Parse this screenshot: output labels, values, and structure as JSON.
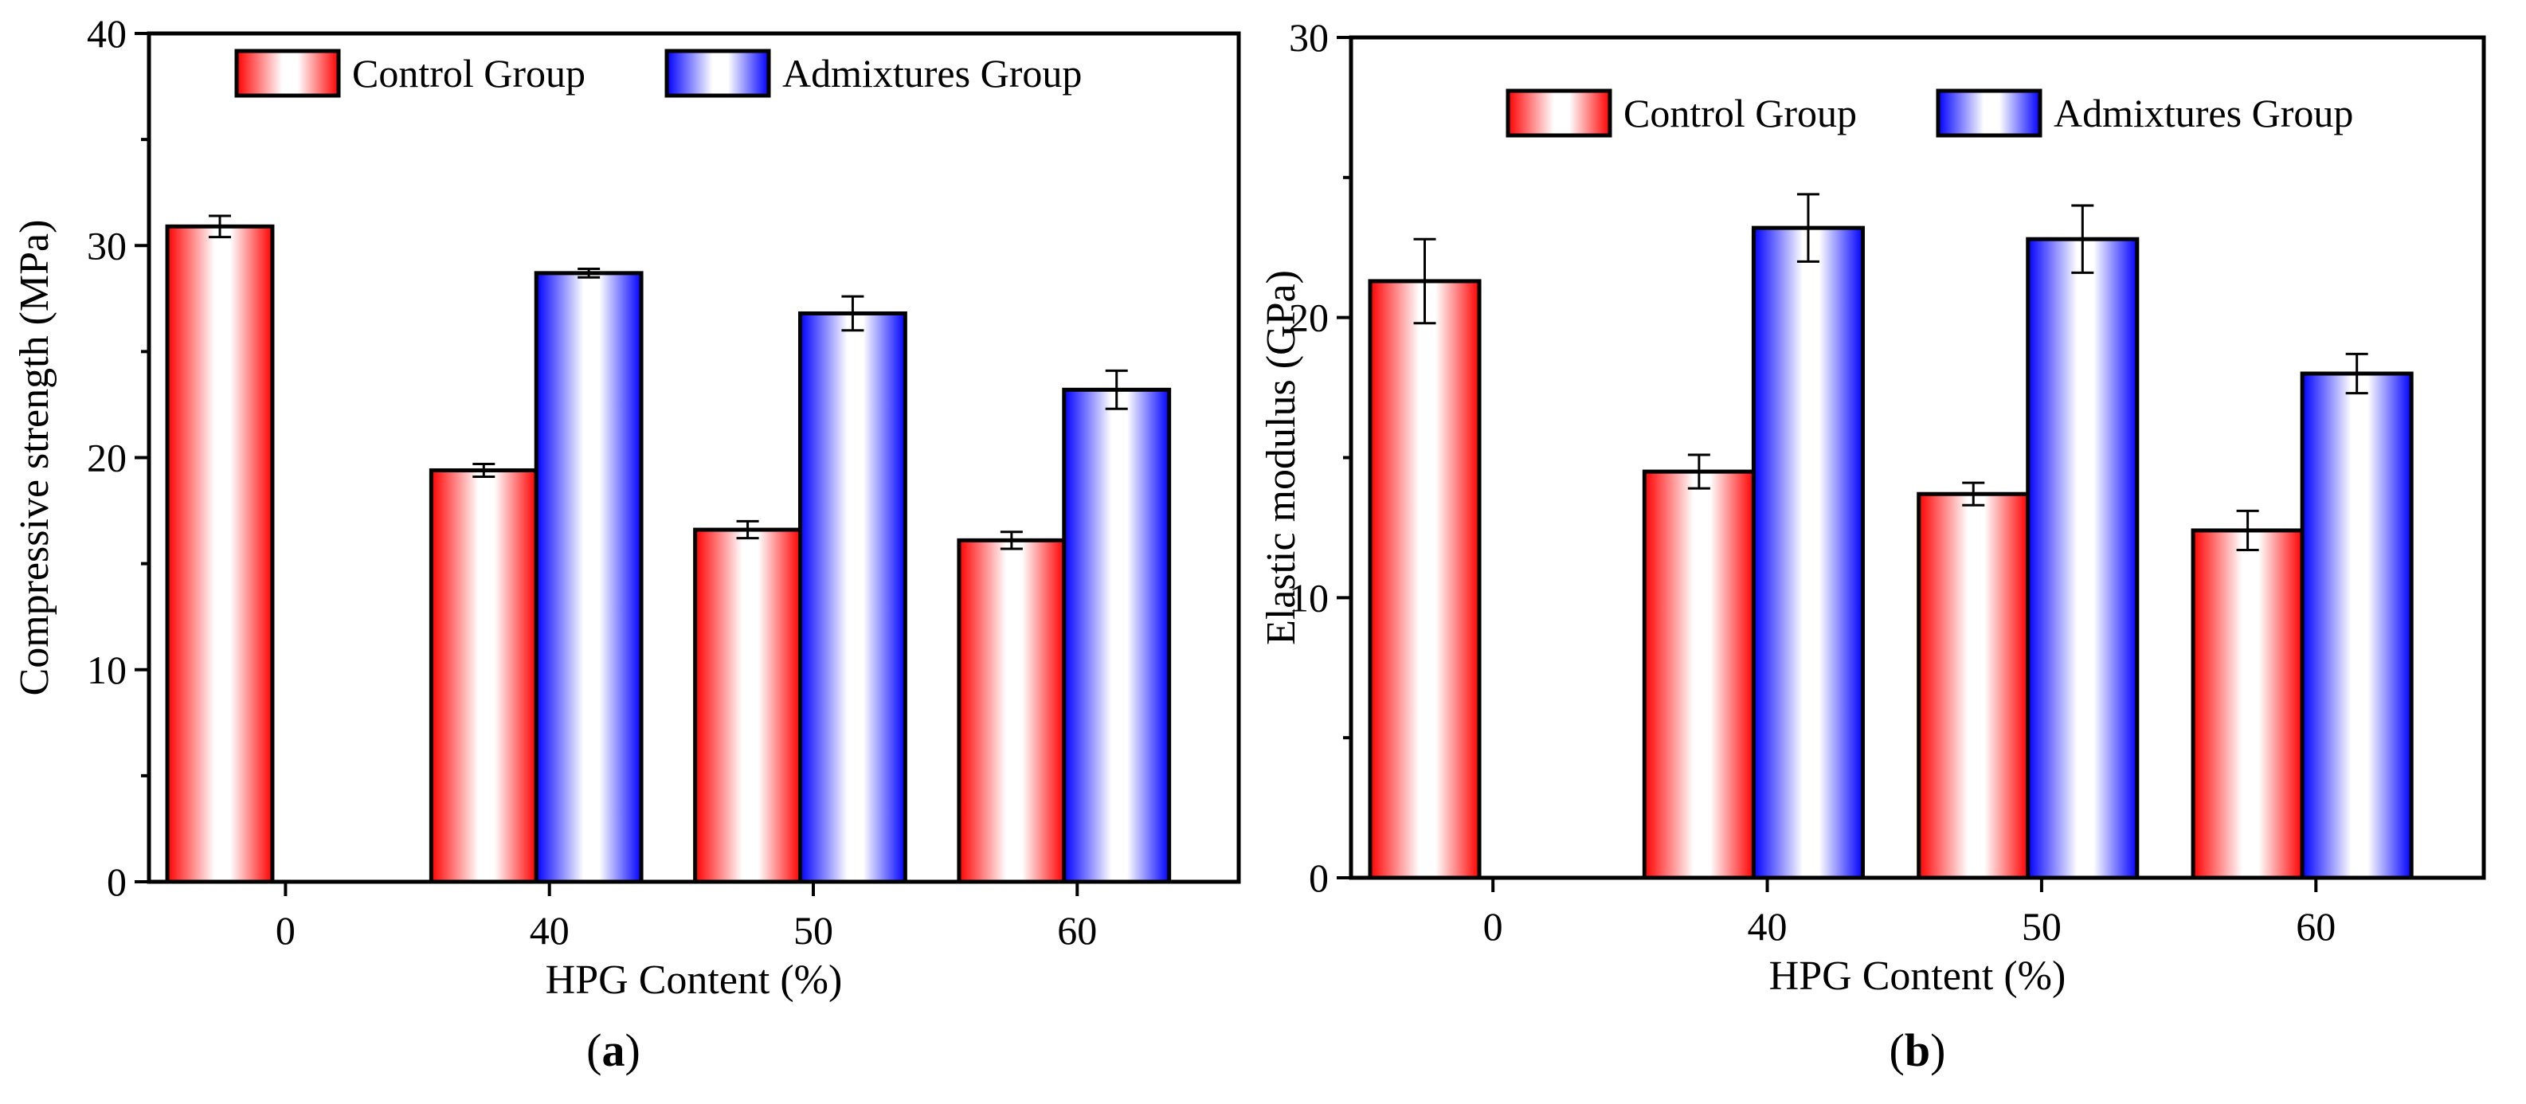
{
  "chart_data": [
    {
      "type": "bar",
      "panel_label": "a",
      "categories": [
        "0",
        "40",
        "50",
        "60"
      ],
      "series": [
        {
          "name": "Control Group",
          "values": [
            30.9,
            19.4,
            16.6,
            16.1
          ],
          "errors": [
            0.5,
            0.3,
            0.4,
            0.4
          ],
          "color": "#ff0000"
        },
        {
          "name": "Admixtures Group",
          "values": [
            null,
            28.7,
            26.8,
            23.2
          ],
          "errors": [
            null,
            0.2,
            0.8,
            0.9
          ],
          "color": "#0000ff"
        }
      ],
      "xlabel": "HPG Content (%)",
      "ylabel": "Compressive strength (MPa)",
      "ylim": [
        0,
        40
      ],
      "yticks": [
        0,
        10,
        20,
        30,
        40
      ],
      "legend_position": "top"
    },
    {
      "type": "bar",
      "panel_label": "b",
      "categories": [
        "0",
        "40",
        "50",
        "60"
      ],
      "series": [
        {
          "name": "Control Group",
          "values": [
            21.3,
            14.5,
            13.7,
            12.4
          ],
          "errors": [
            1.5,
            0.6,
            0.4,
            0.7
          ],
          "color": "#ff0000"
        },
        {
          "name": "Admixtures Group",
          "values": [
            null,
            23.2,
            22.8,
            18.0
          ],
          "errors": [
            null,
            1.2,
            1.2,
            0.7
          ],
          "color": "#0000ff"
        }
      ],
      "xlabel": "HPG Content (%)",
      "ylabel": "Elastic modulus (GPa)",
      "ylim": [
        0,
        30
      ],
      "yticks": [
        0,
        10,
        20,
        30
      ],
      "legend_position": "top"
    }
  ]
}
